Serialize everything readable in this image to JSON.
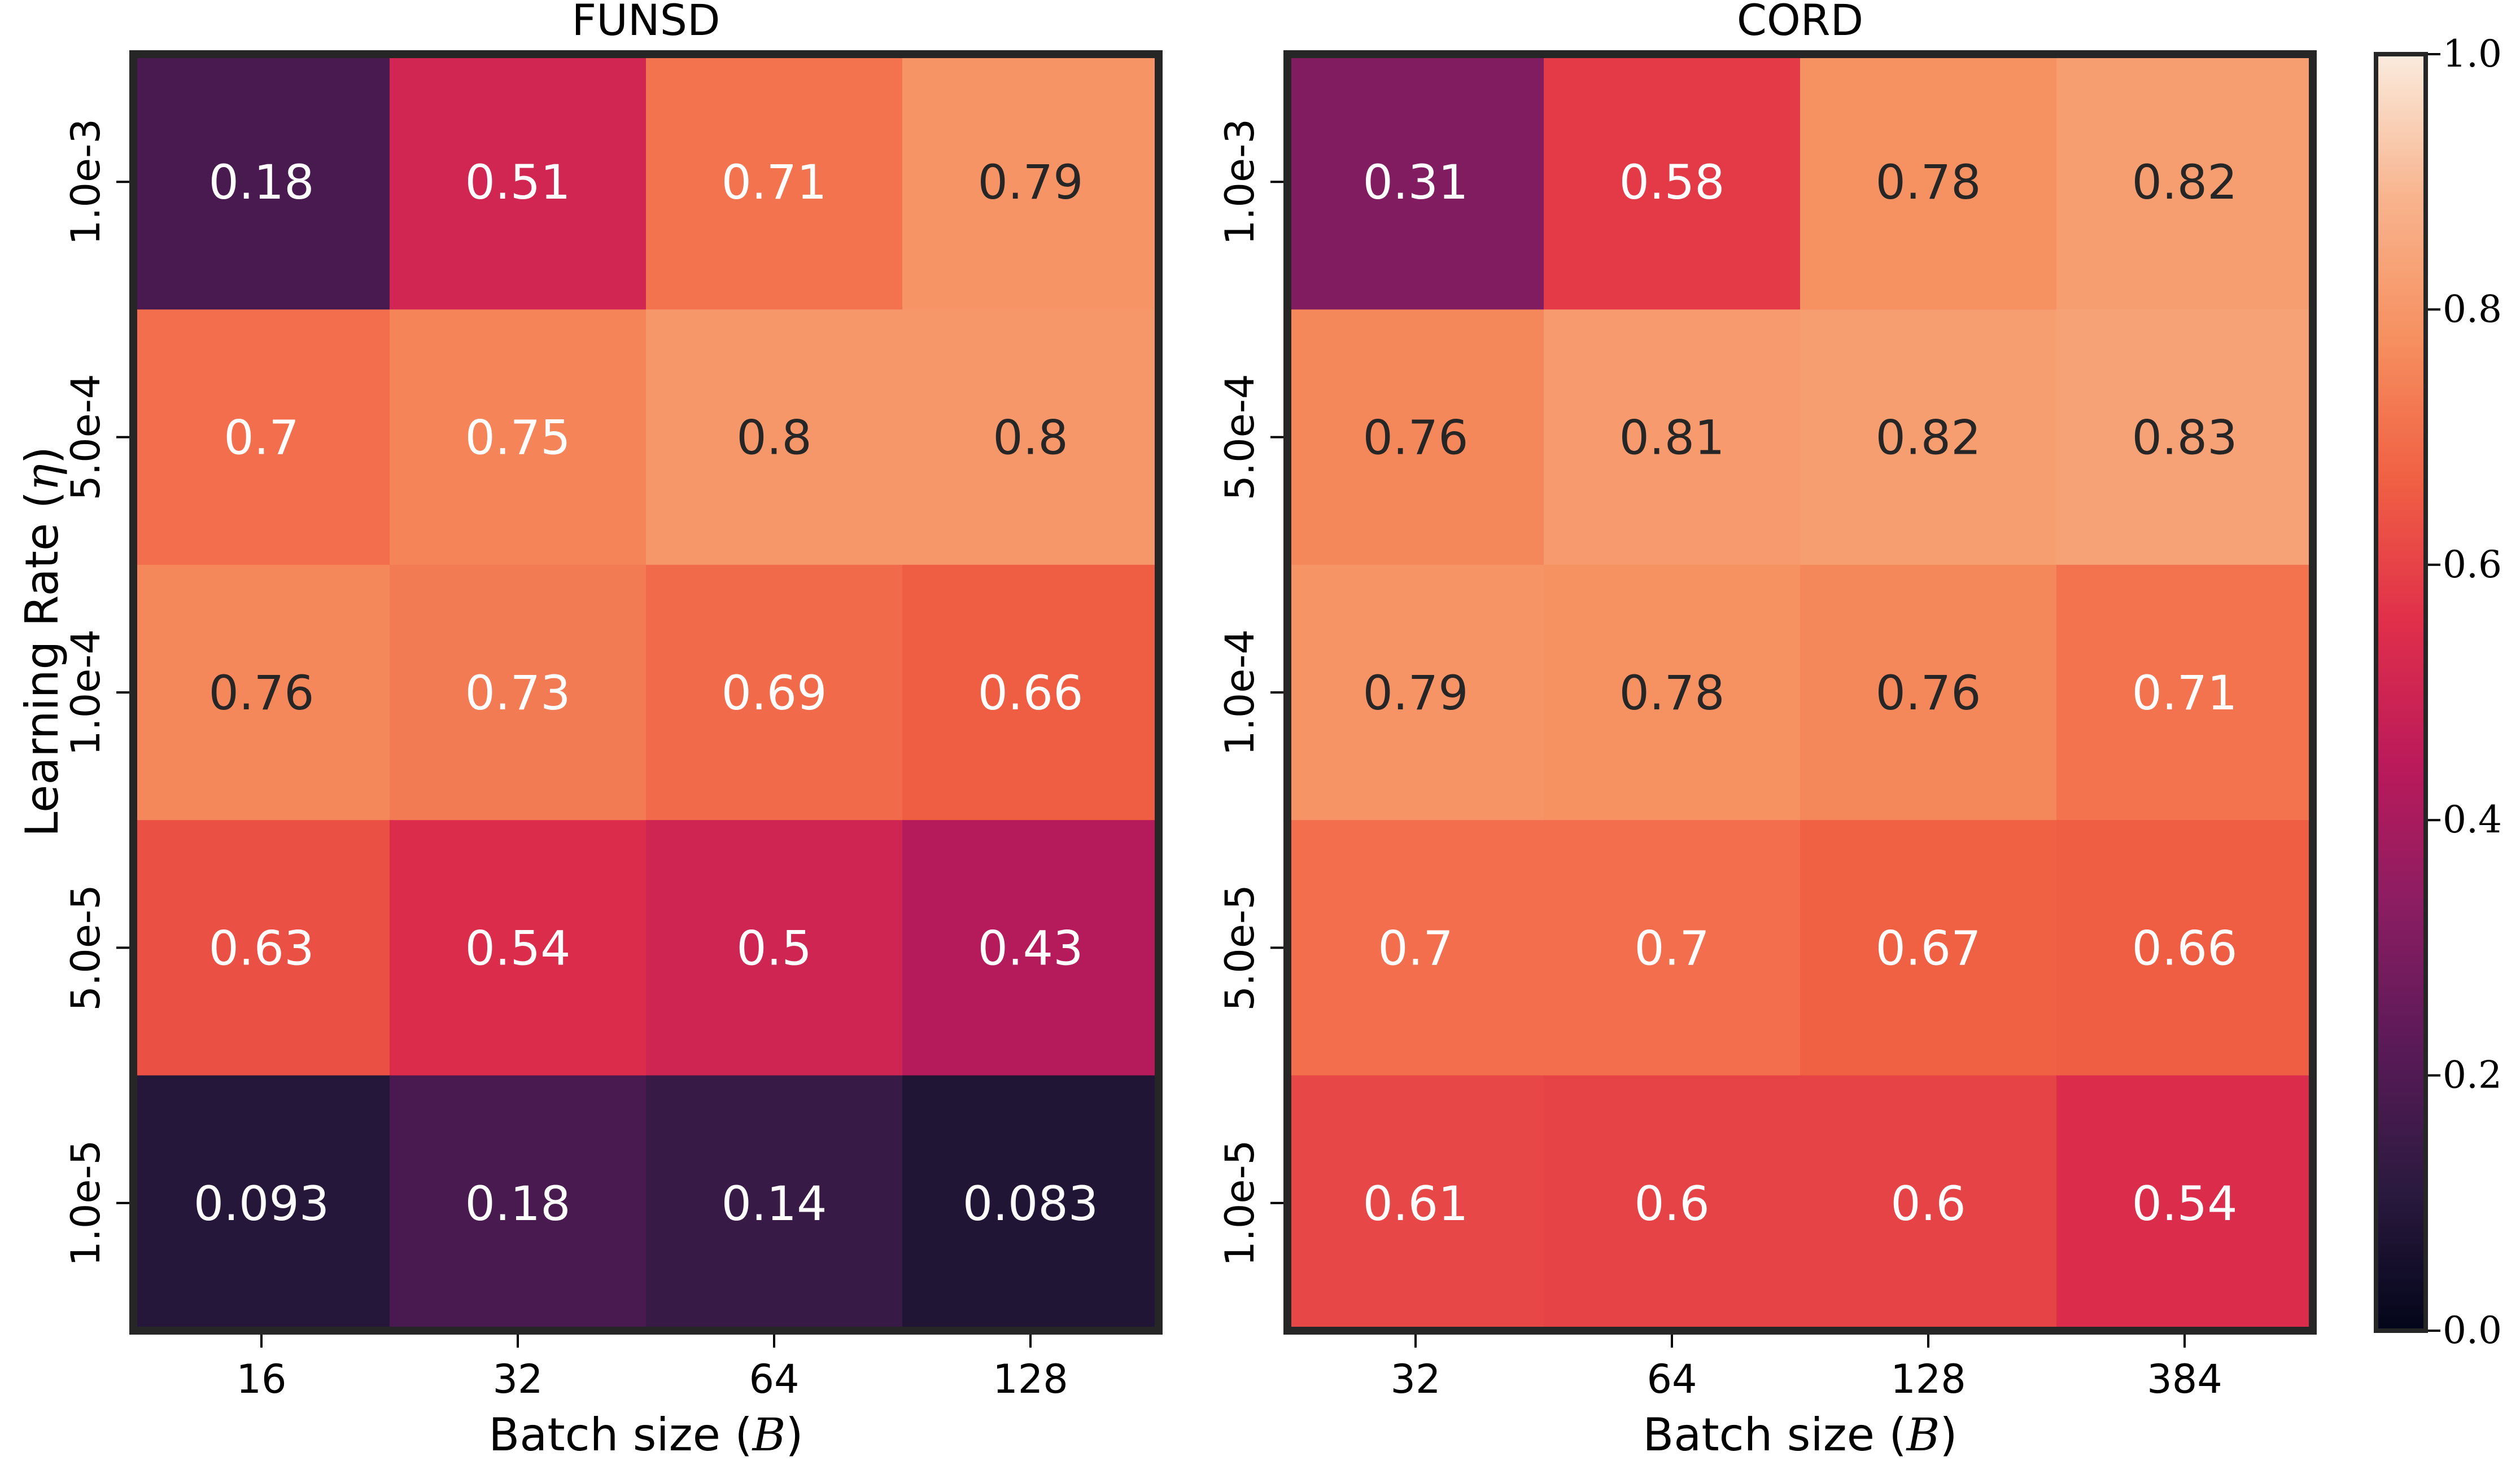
{
  "chart_data": [
    {
      "type": "heatmap",
      "title": "FUNSD",
      "xlabel": "Batch size",
      "xlabel_symbol": "B",
      "ylabel": "Learning Rate",
      "ylabel_symbol": "η",
      "x_categories": [
        "16",
        "32",
        "64",
        "128"
      ],
      "y_categories": [
        "1.0e-3",
        "5.0e-4",
        "1.0e-4",
        "5.0e-5",
        "1.0e-5"
      ],
      "values": [
        [
          0.18,
          0.51,
          0.71,
          0.79
        ],
        [
          0.7,
          0.75,
          0.8,
          0.8
        ],
        [
          0.76,
          0.73,
          0.69,
          0.66
        ],
        [
          0.63,
          0.54,
          0.5,
          0.43
        ],
        [
          0.093,
          0.18,
          0.14,
          0.083
        ]
      ],
      "cell_labels": [
        [
          "0.18",
          "0.51",
          "0.71",
          "0.79"
        ],
        [
          "0.7",
          "0.75",
          "0.8",
          "0.8"
        ],
        [
          "0.76",
          "0.73",
          "0.69",
          "0.66"
        ],
        [
          "0.63",
          "0.54",
          "0.5",
          "0.43"
        ],
        [
          "0.093",
          "0.18",
          "0.14",
          "0.083"
        ]
      ],
      "vmin": 0.0,
      "vmax": 1.0
    },
    {
      "type": "heatmap",
      "title": "CORD",
      "xlabel": "Batch size",
      "xlabel_symbol": "B",
      "ylabel": "",
      "x_categories": [
        "32",
        "64",
        "128",
        "384"
      ],
      "y_categories": [
        "1.0e-3",
        "5.0e-4",
        "1.0e-4",
        "5.0e-5",
        "1.0e-5"
      ],
      "values": [
        [
          0.31,
          0.58,
          0.78,
          0.82
        ],
        [
          0.76,
          0.81,
          0.82,
          0.83
        ],
        [
          0.79,
          0.78,
          0.76,
          0.71
        ],
        [
          0.7,
          0.7,
          0.67,
          0.66
        ],
        [
          0.61,
          0.6,
          0.6,
          0.54
        ]
      ],
      "cell_labels": [
        [
          "0.31",
          "0.58",
          "0.78",
          "0.82"
        ],
        [
          "0.76",
          "0.81",
          "0.82",
          "0.83"
        ],
        [
          "0.79",
          "0.78",
          "0.76",
          "0.71"
        ],
        [
          "0.7",
          "0.7",
          "0.67",
          "0.66"
        ],
        [
          "0.61",
          "0.6",
          "0.6",
          "0.54"
        ]
      ],
      "vmin": 0.0,
      "vmax": 1.0
    }
  ],
  "colorbar": {
    "ticks": [
      "0.0",
      "0.2",
      "0.4",
      "0.6",
      "0.8",
      "1.0"
    ],
    "tick_values": [
      0.0,
      0.2,
      0.4,
      0.6,
      0.8,
      1.0
    ],
    "colormap": "rocket",
    "colormap_stops": [
      "#03051a",
      "#2b1a3f",
      "#5a1a58",
      "#8b1d62",
      "#bb1a5a",
      "#e02f4a",
      "#f06043",
      "#f69060",
      "#f8b48e",
      "#faebdd"
    ]
  }
}
